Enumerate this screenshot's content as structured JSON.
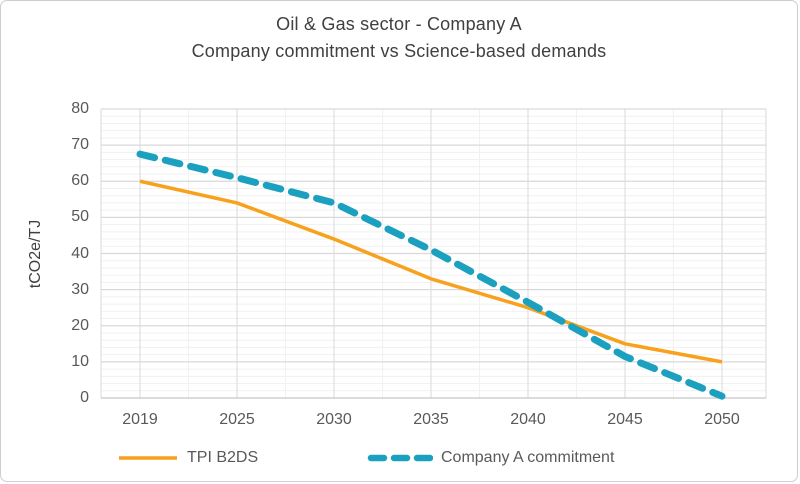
{
  "window": {
    "background": "#ffffff",
    "border_color": "#cfcdcd"
  },
  "title": {
    "line1": "Oil & Gas sector - Company A",
    "line2": "Company commitment vs Science-based demands"
  },
  "chart_data": {
    "type": "line",
    "title": "Oil & Gas sector - Company A — Company commitment vs Science-based demands",
    "ylabel": "tCO2e/TJ",
    "xlabel": "",
    "categories": [
      "2019",
      "2025",
      "2030",
      "2035",
      "2040",
      "2045",
      "2050"
    ],
    "series": [
      {
        "name": "TPI B2DS",
        "values": [
          60,
          54,
          44,
          33,
          25,
          15,
          10
        ],
        "color": "#F7A11D",
        "line_style": "solid",
        "line_width": 3.5
      },
      {
        "name": "Company A commitment",
        "values": [
          67.5,
          61,
          54,
          41,
          26.5,
          11.5,
          0.5
        ],
        "color": "#1BA1BF",
        "line_style": "dashed",
        "line_width": 7
      }
    ],
    "ylim": [
      0,
      80
    ],
    "yticks": [
      0,
      10,
      20,
      30,
      40,
      50,
      60,
      70,
      80
    ],
    "grid": {
      "major_color": "#d9d9d9",
      "minor_color": "#f1f1f1",
      "y_minor_step": 2,
      "x_minor": "between-categories"
    },
    "legend_position": "bottom",
    "tick_color": "#595959",
    "title_color": "#404040"
  }
}
